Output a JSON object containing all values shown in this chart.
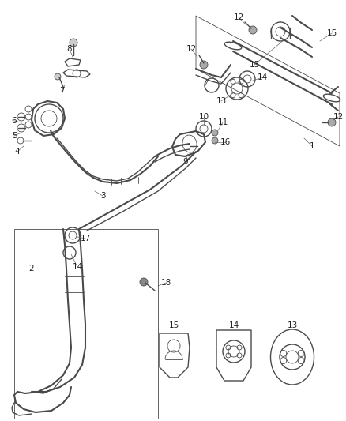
{
  "bg_color": "#ffffff",
  "line_color": "#4a4a4a",
  "label_color": "#222222",
  "label_fontsize": 7.5,
  "fig_width": 4.38,
  "fig_height": 5.33,
  "dpi": 100
}
